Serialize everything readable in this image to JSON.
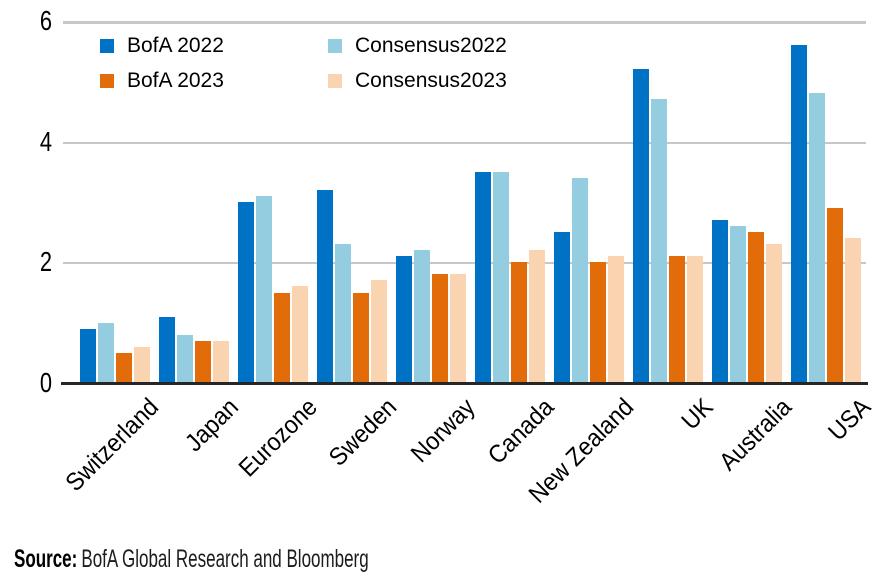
{
  "chart_data": {
    "type": "bar",
    "title": "",
    "xlabel": "",
    "ylabel": "",
    "ylim": [
      0,
      6
    ],
    "y_ticks": [
      0,
      2,
      4,
      6
    ],
    "grid": true,
    "legend_position": "top-left-inside",
    "categories": [
      "Switzerland",
      "Japan",
      "Eurozone",
      "Sweden",
      "Norway",
      "Canada",
      "New Zealand",
      "UK",
      "Australia",
      "USA"
    ],
    "series": [
      {
        "name": "BofA 2022",
        "color": "#0072C6",
        "values": [
          0.9,
          1.1,
          3.0,
          3.2,
          2.1,
          3.5,
          2.5,
          5.2,
          2.7,
          5.6
        ]
      },
      {
        "name": "Consensus2022",
        "color": "#93CDDF",
        "values": [
          1.0,
          0.8,
          3.1,
          2.3,
          2.2,
          3.5,
          3.4,
          4.7,
          2.6,
          4.8
        ]
      },
      {
        "name": "BofA 2023",
        "color": "#E36C0A",
        "values": [
          0.5,
          0.7,
          1.5,
          1.5,
          1.8,
          2.0,
          2.0,
          2.1,
          2.5,
          2.9
        ]
      },
      {
        "name": "Consensus2023",
        "color": "#FAD3B1",
        "values": [
          0.6,
          0.7,
          1.6,
          1.7,
          1.8,
          2.2,
          2.1,
          2.1,
          2.3,
          2.4
        ]
      }
    ],
    "style": {
      "gridline_color": "#C8C8C8",
      "axis_line_color": "#262626"
    }
  },
  "source": {
    "label": "Source:",
    "text": "BofA Global Research and Bloomberg"
  }
}
